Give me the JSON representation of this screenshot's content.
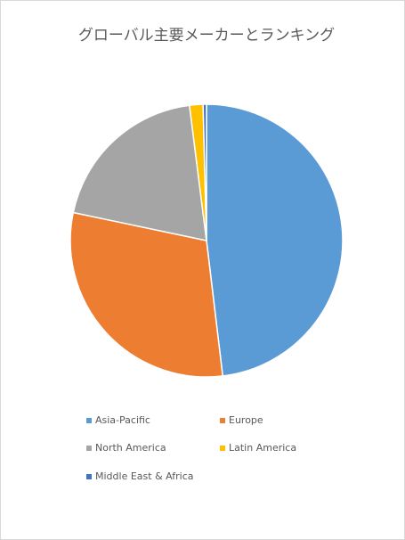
{
  "chart_data": {
    "type": "pie",
    "title": "グローバル主要メーカーとランキング",
    "categories": [
      "Asia-Pacific",
      "Europe",
      "North America",
      "Latin America",
      "Middle East & Africa"
    ],
    "values": [
      48.1,
      30.2,
      19.7,
      1.6,
      0.4
    ],
    "colors": [
      "#5b9bd5",
      "#ed7d31",
      "#a5a5a5",
      "#ffc000",
      "#4472c4"
    ],
    "legend": "bottom"
  }
}
